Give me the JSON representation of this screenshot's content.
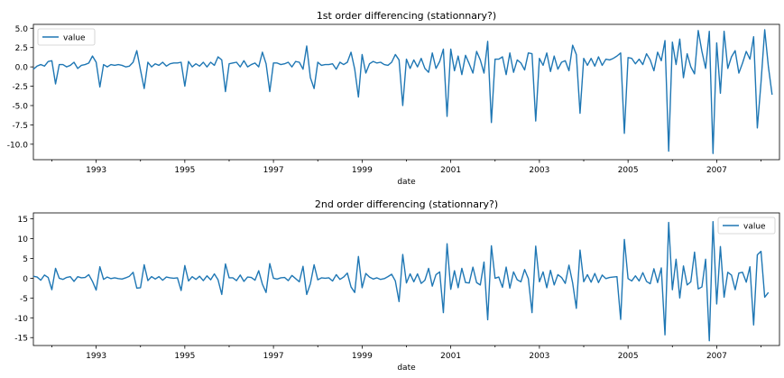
{
  "chart_data": [
    {
      "type": "line",
      "title": "1st order differencing (stationnary?)",
      "xlabel": "date",
      "ylabel": "",
      "x_start": "1991-08",
      "x_end": "2008-06",
      "xticks": [
        "1993",
        "1995",
        "1997",
        "1999",
        "2001",
        "2003",
        "2005",
        "2007"
      ],
      "ylim": [
        -12,
        5.5
      ],
      "yticks": [
        "5.0",
        "2.5",
        "0.0",
        "-2.5",
        "-5.0",
        "-7.5",
        "-10.0"
      ],
      "legend": {
        "position": "upper left",
        "entries": [
          "value"
        ]
      },
      "grid": false,
      "color": "#1f77b4",
      "series": [
        {
          "name": "value",
          "values": [
            -0.3,
            0.1,
            0.3,
            0.1,
            0.7,
            0.8,
            -2.2,
            0.3,
            0.3,
            0.0,
            0.2,
            0.6,
            -0.2,
            0.2,
            0.3,
            0.5,
            1.4,
            0.6,
            -2.6,
            0.3,
            0.0,
            0.3,
            0.2,
            0.3,
            0.2,
            0.0,
            0.1,
            0.6,
            2.1,
            -0.4,
            -2.8,
            0.6,
            0.0,
            0.4,
            0.2,
            0.6,
            0.1,
            0.4,
            0.5,
            0.5,
            0.6,
            -2.5,
            0.7,
            0.0,
            0.4,
            0.1,
            0.6,
            0.0,
            0.6,
            0.2,
            1.3,
            0.9,
            -3.2,
            0.4,
            0.5,
            0.6,
            0.0,
            0.8,
            0.0,
            0.3,
            0.5,
            0.0,
            1.9,
            0.4,
            -3.2,
            0.5,
            0.5,
            0.3,
            0.4,
            0.6,
            0.0,
            0.7,
            0.6,
            -0.3,
            2.7,
            -1.4,
            -2.8,
            0.6,
            0.2,
            0.3,
            0.3,
            0.4,
            -0.3,
            0.6,
            0.3,
            0.6,
            1.9,
            -0.3,
            -3.9,
            1.6,
            -0.8,
            0.4,
            0.7,
            0.5,
            0.6,
            0.3,
            0.2,
            0.6,
            1.6,
            0.9,
            -5.0,
            1.0,
            -0.2,
            0.9,
            0.0,
            1.1,
            -0.2,
            -0.7,
            1.8,
            -0.2,
            0.7,
            2.3,
            -6.4,
            2.3,
            -0.5,
            1.4,
            -1.0,
            1.5,
            0.4,
            -0.8,
            2.0,
            0.9,
            -0.8,
            3.3,
            -7.2,
            1.0,
            1.0,
            1.3,
            -1.0,
            1.8,
            -0.7,
            0.9,
            0.5,
            -0.4,
            1.8,
            1.7,
            -7.0,
            1.1,
            0.2,
            1.8,
            -0.6,
            1.4,
            -0.3,
            0.6,
            0.8,
            -0.5,
            2.8,
            1.6,
            -6.0,
            1.1,
            0.2,
            1.1,
            0.1,
            1.3,
            0.2,
            1.0,
            0.9,
            1.1,
            1.4,
            1.8,
            -8.6,
            1.2,
            1.1,
            0.4,
            1.0,
            0.3,
            1.7,
            0.9,
            -0.5,
            1.9,
            0.8,
            3.4,
            -10.9,
            3.2,
            0.3,
            3.6,
            -1.4,
            1.7,
            0.0,
            -0.9,
            4.7,
            2.0,
            -0.2,
            4.6,
            -11.2,
            3.1,
            -3.4,
            4.6,
            -0.2,
            1.3,
            2.1,
            -0.8,
            0.5,
            2.0,
            1.0,
            3.9,
            -7.9,
            -2.0,
            4.8,
            0.0,
            -3.6
          ]
        }
      ]
    },
    {
      "type": "line",
      "title": "2nd order differencing (stationnary?)",
      "xlabel": "date",
      "ylabel": "",
      "x_start": "1991-08",
      "x_end": "2008-06",
      "xticks": [
        "1993",
        "1995",
        "1997",
        "1999",
        "2001",
        "2003",
        "2005",
        "2007"
      ],
      "ylim": [
        -17,
        16.5
      ],
      "yticks": [
        "15",
        "10",
        "5",
        "0",
        "-5",
        "-10",
        "-15"
      ],
      "legend": {
        "position": "upper right",
        "entries": [
          "value"
        ]
      },
      "grid": false,
      "color": "#1f77b4",
      "series": [
        {
          "name": "value",
          "values": [
            0.5,
            0.3,
            -0.5,
            0.8,
            0.2,
            -2.9,
            2.5,
            0.0,
            -0.3,
            0.2,
            0.4,
            -0.8,
            0.4,
            0.1,
            0.2,
            0.9,
            -0.8,
            -3.0,
            2.9,
            -0.3,
            0.3,
            -0.1,
            0.1,
            -0.1,
            -0.2,
            0.1,
            0.5,
            1.5,
            -2.5,
            -2.4,
            3.4,
            -0.6,
            0.4,
            -0.2,
            0.4,
            -0.5,
            0.3,
            0.1,
            0.0,
            0.1,
            -3.1,
            3.2,
            -0.7,
            0.4,
            -0.3,
            0.5,
            -0.6,
            0.6,
            -0.4,
            1.1,
            -0.4,
            -4.1,
            3.6,
            0.1,
            0.1,
            -0.6,
            0.8,
            -0.8,
            0.3,
            0.2,
            -0.5,
            1.9,
            -1.5,
            -3.6,
            3.7,
            0.0,
            -0.2,
            0.1,
            0.2,
            -0.6,
            0.7,
            -0.1,
            -0.9,
            3.0,
            -4.1,
            -1.4,
            3.4,
            -0.4,
            0.1,
            0.0,
            0.1,
            -0.7,
            0.9,
            -0.3,
            0.3,
            1.3,
            -2.2,
            -3.6,
            5.5,
            -2.4,
            1.2,
            0.3,
            -0.2,
            0.1,
            -0.3,
            -0.1,
            0.4,
            1.0,
            -0.7,
            -5.9,
            6.0,
            -1.2,
            1.1,
            -0.9,
            1.1,
            -1.3,
            -0.5,
            2.5,
            -2.0,
            0.9,
            1.6,
            -8.7,
            8.7,
            -2.8,
            1.9,
            -2.4,
            2.5,
            -1.1,
            -1.2,
            2.8,
            -1.1,
            -1.7,
            4.1,
            -10.5,
            8.2,
            0.0,
            0.3,
            -2.3,
            2.8,
            -2.5,
            1.6,
            -0.4,
            -0.9,
            2.2,
            -0.1,
            -8.7,
            8.1,
            -0.9,
            1.6,
            -2.4,
            2.0,
            -1.7,
            0.9,
            0.2,
            -1.3,
            3.3,
            -1.2,
            -7.6,
            7.1,
            -0.9,
            0.9,
            -1.0,
            1.2,
            -1.1,
            0.8,
            -0.1,
            0.2,
            0.3,
            0.4,
            -10.4,
            9.8,
            -0.1,
            -0.7,
            0.6,
            -0.7,
            1.4,
            -0.8,
            -1.4,
            2.4,
            -1.1,
            2.6,
            -14.3,
            14.1,
            -2.9,
            4.8,
            -5.0,
            3.1,
            -1.7,
            -0.9,
            6.6,
            -2.7,
            -2.2,
            4.8,
            -15.8,
            14.3,
            -6.5,
            8.0,
            -4.8,
            1.5,
            0.8,
            -2.9,
            1.3,
            1.5,
            -1.0,
            2.9,
            -11.8,
            5.9,
            6.8,
            -4.8,
            -3.6
          ]
        }
      ]
    }
  ]
}
